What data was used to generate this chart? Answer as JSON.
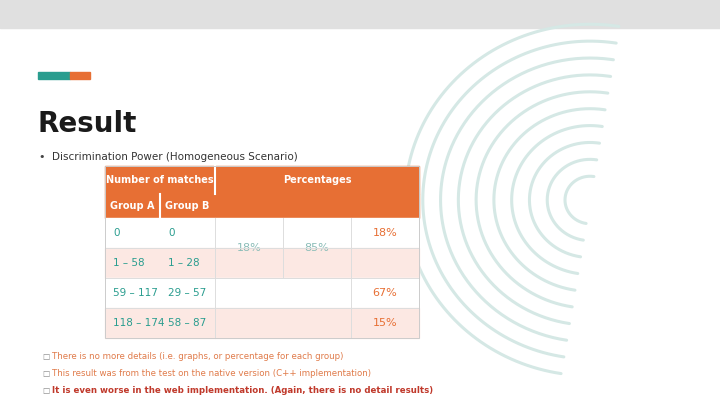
{
  "bg_top_color": "#e0e0e0",
  "bg_main_color": "#ffffff",
  "title": "Result",
  "accent_bar_color1": "#2a9d8f",
  "accent_bar_color2": "#e76f34",
  "bullet_text": "Discrimination Power (Homogeneous Scenario)",
  "table_header1": "Number of matches",
  "table_header2": "Percentages",
  "table_subheader1": "Group A",
  "table_subheader2": "Group B",
  "header_bg": "#e76f34",
  "header_text_color": "#ffffff",
  "row_data_groupA": [
    "0",
    "1 – 58",
    "59 – 117",
    "118 – 174"
  ],
  "row_data_groupB": [
    "0",
    "1 – 28",
    "29 – 57",
    "58 – 87"
  ],
  "row_bg_light": "#fce8e3",
  "row_bg_white": "#ffffff",
  "cell_text_color": "#2a9d8f",
  "pct_mid_color": "#8bbdb8",
  "pct_right_color": "#e76f34",
  "merged_18pct": "18%",
  "merged_85pct": "85%",
  "right_pcts": [
    "18%",
    "",
    "67%",
    "15%"
  ],
  "fingerprint_color": "#d5e8e5",
  "notes": [
    "There is no more details (i.e. graphs, or percentage for each group)",
    "This result was from the test on the native version (C++ implementation)",
    "It is even worse in the web implementation. (Again, there is no detail results)"
  ],
  "note_color_normal": "#e07b4a",
  "note_color_bold": "#c0392b",
  "bullet_color": "#444444",
  "title_color": "#1a1a1a"
}
